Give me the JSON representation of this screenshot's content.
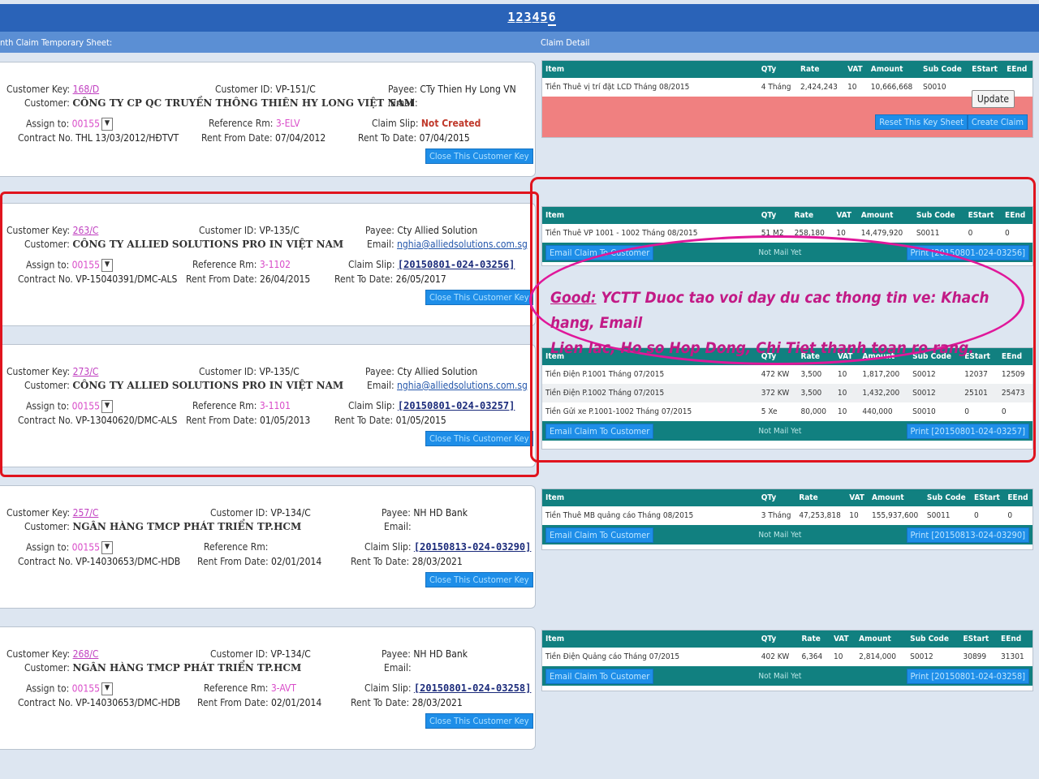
{
  "pagination": [
    "1",
    "2",
    "3",
    "4",
    "5",
    "6"
  ],
  "current_page": "6",
  "left_header": "nth Claim Temporary Sheet:",
  "right_header": "Claim Detail",
  "labels": {
    "customer_key": "Customer Key:",
    "customer_id": "Customer ID:",
    "payee": "Payee:",
    "customer": "Customer:",
    "email": "Email:",
    "assign_to": "Assign to:",
    "reference_rm": "Reference Rm:",
    "claim_slip": "Claim Slip:",
    "contract_no": "Contract No.",
    "rent_from": "Rent From Date:",
    "rent_to": "Rent To Date:",
    "close_key": "Close This Customer Key",
    "email_claim": "Email Claim To Customer",
    "not_mail": "Not Mail Yet",
    "update": "Update",
    "reset_key": "Reset This Key Sheet",
    "create_claim": "Create Claim"
  },
  "columns": [
    "Item",
    "QTy",
    "Rate",
    "VAT",
    "Amount",
    "Sub Code",
    "EStart",
    "EEnd"
  ],
  "cards": [
    {
      "key": "168/D",
      "id": "VP-151/C",
      "payee": "CTy Thien Hy Long VN",
      "customer": "CÔNG TY CP QC TRUYỀN THÔNG THIÊN HY LONG VIỆT NAM",
      "email": "",
      "assign": "00155",
      "ref": "3-ELV",
      "slip": "Not Created",
      "contract": "THL 13/03/2012/HĐTVT",
      "from": "07/04/2012",
      "to": "07/04/2015"
    },
    {
      "key": "263/C",
      "id": "VP-135/C",
      "payee": "Cty Allied Solution",
      "customer": "CÔNG TY ALLIED SOLUTIONS PRO IN VIỆT NAM",
      "email": "nghia@alliedsolutions.com.sg",
      "assign": "00155",
      "ref": "3-1102",
      "slip": "[20150801-024-03256]",
      "contract": "VP-15040391/DMC-ALS",
      "from": "26/04/2015",
      "to": "26/05/2017"
    },
    {
      "key": "273/C",
      "id": "VP-135/C",
      "payee": "Cty Allied Solution",
      "customer": "CÔNG TY ALLIED SOLUTIONS PRO IN VIỆT NAM",
      "email": "nghia@alliedsolutions.com.sg",
      "assign": "00155",
      "ref": "3-1101",
      "slip": "[20150801-024-03257]",
      "contract": "VP-13040620/DMC-ALS",
      "from": "01/05/2013",
      "to": "01/05/2015"
    },
    {
      "key": "257/C",
      "id": "VP-134/C",
      "payee": "NH HD Bank",
      "customer": "NGÂN HÀNG TMCP PHÁT TRIỂN TP.HCM",
      "email": "",
      "assign": "00155",
      "ref": "",
      "slip": "[20150813-024-03290]",
      "contract": "VP-14030653/DMC-HDB",
      "from": "02/01/2014",
      "to": "28/03/2021"
    },
    {
      "key": "268/C",
      "id": "VP-134/C",
      "payee": "NH HD Bank",
      "customer": "NGÂN HÀNG TMCP PHÁT TRIỂN TP.HCM",
      "email": "",
      "assign": "00155",
      "ref": "3-AVT",
      "slip": "[20150801-024-03258]",
      "contract": "VP-14030653/DMC-HDB",
      "from": "02/01/2014",
      "to": "28/03/2021"
    }
  ],
  "details": [
    {
      "rows": [
        {
          "item": "Tiền Thuê vị trí đặt LCD Tháng 08/2015",
          "qty": "4 Tháng",
          "rate": "2,424,243",
          "vat": "10",
          "amount": "10,666,668",
          "sub": "S0010",
          "estart": "",
          "eend": ""
        }
      ]
    },
    {
      "rows": [
        {
          "item": "Tiền Thuê VP 1001 - 1002 Tháng 08/2015",
          "qty": "51 M2",
          "rate": "258,180",
          "vat": "10",
          "amount": "14,479,920",
          "sub": "S0011",
          "estart": "0",
          "eend": "0"
        }
      ],
      "print": "Print [20150801-024-03256]"
    },
    {
      "rows": [
        {
          "item": "Tiền Điện P.1001 Tháng 07/2015",
          "qty": "472 KW",
          "rate": "3,500",
          "vat": "10",
          "amount": "1,817,200",
          "sub": "S0012",
          "estart": "12037",
          "eend": "12509"
        },
        {
          "item": "Tiền Điện P.1002 Tháng 07/2015",
          "qty": "372 KW",
          "rate": "3,500",
          "vat": "10",
          "amount": "1,432,200",
          "sub": "S0012",
          "estart": "25101",
          "eend": "25473"
        },
        {
          "item": "Tiền Gửi xe P.1001-1002 Tháng 07/2015",
          "qty": "5 Xe",
          "rate": "80,000",
          "vat": "10",
          "amount": "440,000",
          "sub": "S0010",
          "estart": "0",
          "eend": "0"
        }
      ],
      "print": "Print [20150801-024-03257]"
    },
    {
      "rows": [
        {
          "item": "Tiền Thuê MB quảng cáo Tháng 08/2015",
          "qty": "3 Tháng",
          "rate": "47,253,818",
          "vat": "10",
          "amount": "155,937,600",
          "sub": "S0011",
          "estart": "0",
          "eend": "0"
        }
      ],
      "print": "Print [20150813-024-03290]"
    },
    {
      "rows": [
        {
          "item": "Tiền Điện Quảng cáo Tháng 07/2015",
          "qty": "402 KW",
          "rate": "6,364",
          "vat": "10",
          "amount": "2,814,000",
          "sub": "S0012",
          "estart": "30899",
          "eend": "31301"
        }
      ],
      "print": "Print [20150801-024-03258]"
    }
  ],
  "annotation": {
    "good": "Good:",
    "line1": " YCTT Duoc tao voi day du cac thong tin ve: Khach hang, Email",
    "line2": "Lien lac, Ho so Hop Dong, Chi Tiet thanh toan ro rang."
  },
  "colors": {
    "topbar": "#2a63b8",
    "subbar": "#5b8fd4",
    "teal": "#118080",
    "button": "#1e8ee8",
    "highlight": "#e0141e",
    "annotation": "#e0179a"
  }
}
